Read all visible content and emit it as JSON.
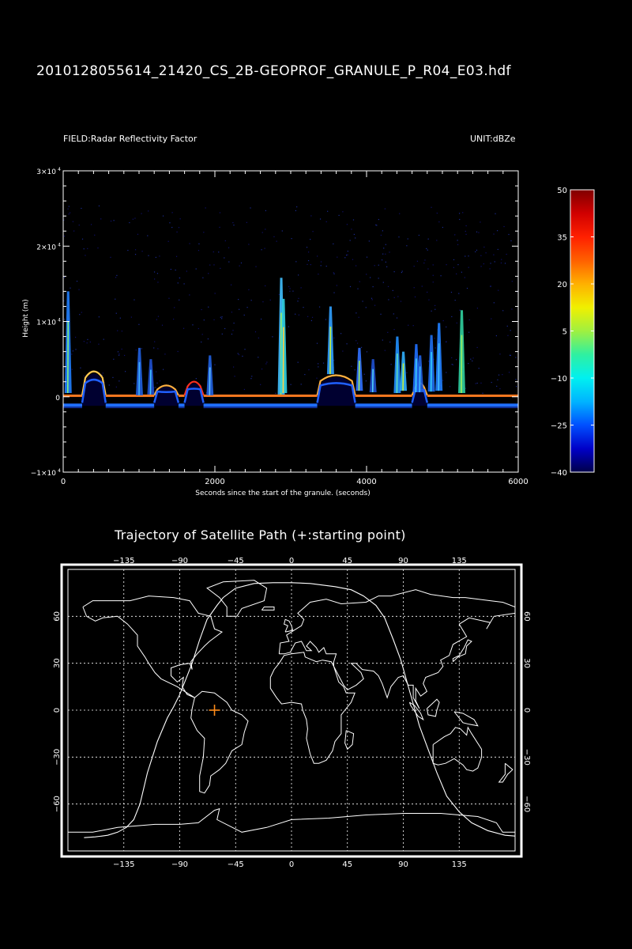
{
  "header": {
    "file_title": "2010128055614_21420_CS_2B-GEOPROF_GRANULE_P_R04_E03.hdf",
    "field_label": "FIELD:Radar Reflectivity Factor",
    "unit_label": "UNIT:dBZe"
  },
  "chart_data": [
    {
      "type": "heatmap",
      "title": "",
      "field": "Radar Reflectivity Factor",
      "unit": "dBZe",
      "xlabel": "Seconds since the start of the granule. (seconds)",
      "ylabel": "Height (m)",
      "xlim": [
        0,
        6000
      ],
      "ylim": [
        -10000,
        30000
      ],
      "x_ticks": [
        0,
        2000,
        4000,
        6000
      ],
      "x_tick_labels": [
        "0",
        "2000",
        "4000",
        "6000"
      ],
      "y_ticks": [
        -10000,
        0,
        10000,
        20000,
        30000
      ],
      "y_tick_labels": [
        {
          "m": "−1×10",
          "e": "4"
        },
        {
          "m": "0",
          "e": ""
        },
        {
          "m": "1×10",
          "e": "4"
        },
        {
          "m": "2×10",
          "e": "4"
        },
        {
          "m": "3×10",
          "e": "4"
        }
      ],
      "colorbar": {
        "min": -40,
        "max": 50,
        "ticks": [
          50,
          35,
          20,
          5,
          -10,
          -25,
          -40
        ],
        "tick_labels": [
          "50",
          "35",
          "20",
          "5",
          "−10",
          "−25",
          "−40"
        ],
        "colors": [
          "#00004a",
          "#0000c8",
          "#0050ff",
          "#00b4ff",
          "#00f0f0",
          "#30f0a0",
          "#a0f040",
          "#f0f000",
          "#ffb000",
          "#ff6000",
          "#ff2000",
          "#d00000",
          "#800000"
        ]
      },
      "surface_segments": [
        {
          "x": [
            0,
            250
          ],
          "topo": 0,
          "color": "#ff7a20"
        },
        {
          "x": [
            250,
            560
          ],
          "topo": 3600,
          "color": "#ffc850"
        },
        {
          "x": [
            560,
            1200
          ],
          "topo": 0,
          "color": "#ff7a20"
        },
        {
          "x": [
            1200,
            1520
          ],
          "topo": 1400,
          "color": "#ffb040"
        },
        {
          "x": [
            1520,
            1600
          ],
          "topo": 0,
          "color": "#ff7a20"
        },
        {
          "x": [
            1600,
            1850
          ],
          "topo": 2000,
          "color": "#ff3020"
        },
        {
          "x": [
            1850,
            3350
          ],
          "topo": 0,
          "color": "#ff7a20"
        },
        {
          "x": [
            3350,
            3850
          ],
          "topo": 3000,
          "color": "#ffb040"
        },
        {
          "x": [
            3850,
            4600
          ],
          "topo": 0,
          "color": "#ff7a20"
        },
        {
          "x": [
            4600,
            4800
          ],
          "topo": 1800,
          "color": "#ffb040"
        },
        {
          "x": [
            4800,
            6000
          ],
          "topo": 0,
          "color": "#ff7a20"
        }
      ],
      "clouds": [
        {
          "x": 2870,
          "y0": 300,
          "y1": 15800,
          "color": "#40c0ff",
          "core": "#a0f060"
        },
        {
          "x": 2900,
          "y0": 500,
          "y1": 13000,
          "color": "#30d0e0",
          "core": "#ffd040"
        },
        {
          "x": 3520,
          "y0": 3000,
          "y1": 12000,
          "color": "#30a0ff",
          "core": "#c0f040"
        },
        {
          "x": 5250,
          "y0": 500,
          "y1": 11500,
          "color": "#30d0a0",
          "core": "#a0f060"
        },
        {
          "x": 4950,
          "y0": 800,
          "y1": 9800,
          "color": "#2080ff",
          "core": "#40c0ff"
        },
        {
          "x": 4400,
          "y0": 500,
          "y1": 8000,
          "color": "#2090ff",
          "core": "#60e0c0"
        },
        {
          "x": 4480,
          "y0": 800,
          "y1": 6000,
          "color": "#30b0ff",
          "core": "#c0f040"
        },
        {
          "x": 4650,
          "y0": 600,
          "y1": 7000,
          "color": "#2070ff",
          "core": "#40d0ff"
        },
        {
          "x": 4700,
          "y0": 600,
          "y1": 5500,
          "color": "#2060e0",
          "core": "#40c0ff"
        },
        {
          "x": 4850,
          "y0": 700,
          "y1": 8200,
          "color": "#1f6ff0",
          "core": "#30d0ff"
        },
        {
          "x": 1930,
          "y0": 200,
          "y1": 5500,
          "color": "#2060e0",
          "core": "#60c0ff"
        },
        {
          "x": 1000,
          "y0": 200,
          "y1": 6500,
          "color": "#2060e0",
          "core": "#40b0ff"
        },
        {
          "x": 1150,
          "y0": 300,
          "y1": 5000,
          "color": "#1f50d0",
          "core": "#40c0ff"
        },
        {
          "x": 60,
          "y0": 500,
          "y1": 14000,
          "color": "#2080ff",
          "core": "#80f080"
        },
        {
          "x": 3900,
          "y0": 800,
          "y1": 6500,
          "color": "#3070ff",
          "core": "#a0f060"
        },
        {
          "x": 4080,
          "y0": 600,
          "y1": 5000,
          "color": "#1f50d0",
          "core": "#50d0ff"
        }
      ]
    },
    {
      "type": "map",
      "title": "Trajectory of Satellite Path (+:starting point)",
      "projection": "cylindrical",
      "lon_range": [
        -180,
        180
      ],
      "lat_range": [
        -90,
        90
      ],
      "lon_ticks": [
        -135,
        -90,
        -45,
        0,
        45,
        90,
        135
      ],
      "lon_tick_labels": [
        "−135",
        "−90",
        "−45",
        "0",
        "45",
        "90",
        "135"
      ],
      "lat_ticks": [
        60,
        30,
        0,
        -30,
        -60
      ],
      "lat_tick_labels": [
        "60",
        "30",
        "0",
        "−30",
        "−60"
      ],
      "grid": true,
      "start_point": {
        "lon": -62,
        "lat": 0,
        "marker": "+",
        "color": "#ff8c1a"
      },
      "ascending_track": [
        [
          -167,
          -81.5
        ],
        [
          -158,
          -81
        ],
        [
          -148,
          -80
        ],
        [
          -140,
          -78
        ],
        [
          -133,
          -75
        ],
        [
          -127,
          -70
        ],
        [
          -122,
          -60
        ],
        [
          -116,
          -40
        ],
        [
          -112,
          -30
        ],
        [
          -108,
          -20
        ],
        [
          -100,
          -5
        ],
        [
          -95,
          2
        ],
        [
          -90,
          10
        ],
        [
          -85,
          20
        ],
        [
          -80,
          30
        ],
        [
          -74,
          45
        ],
        [
          -68,
          58
        ],
        [
          -60,
          67
        ],
        [
          -55,
          72
        ],
        [
          -45,
          78
        ],
        [
          -30,
          81
        ],
        [
          -15,
          81.5
        ],
        [
          0,
          81.5
        ]
      ],
      "descending_track": [
        [
          0,
          81.5
        ],
        [
          15,
          81
        ],
        [
          25,
          80
        ],
        [
          35,
          79
        ],
        [
          48,
          77
        ],
        [
          58,
          73
        ],
        [
          68,
          67
        ],
        [
          75,
          59
        ],
        [
          82,
          45
        ],
        [
          88,
          32
        ],
        [
          93,
          18
        ],
        [
          98,
          4
        ],
        [
          103,
          -10
        ],
        [
          110,
          -25
        ],
        [
          117,
          -40
        ],
        [
          125,
          -55
        ],
        [
          135,
          -65
        ],
        [
          145,
          -72
        ],
        [
          158,
          -77
        ],
        [
          172,
          -80
        ],
        [
          180,
          -80.5
        ]
      ]
    }
  ]
}
